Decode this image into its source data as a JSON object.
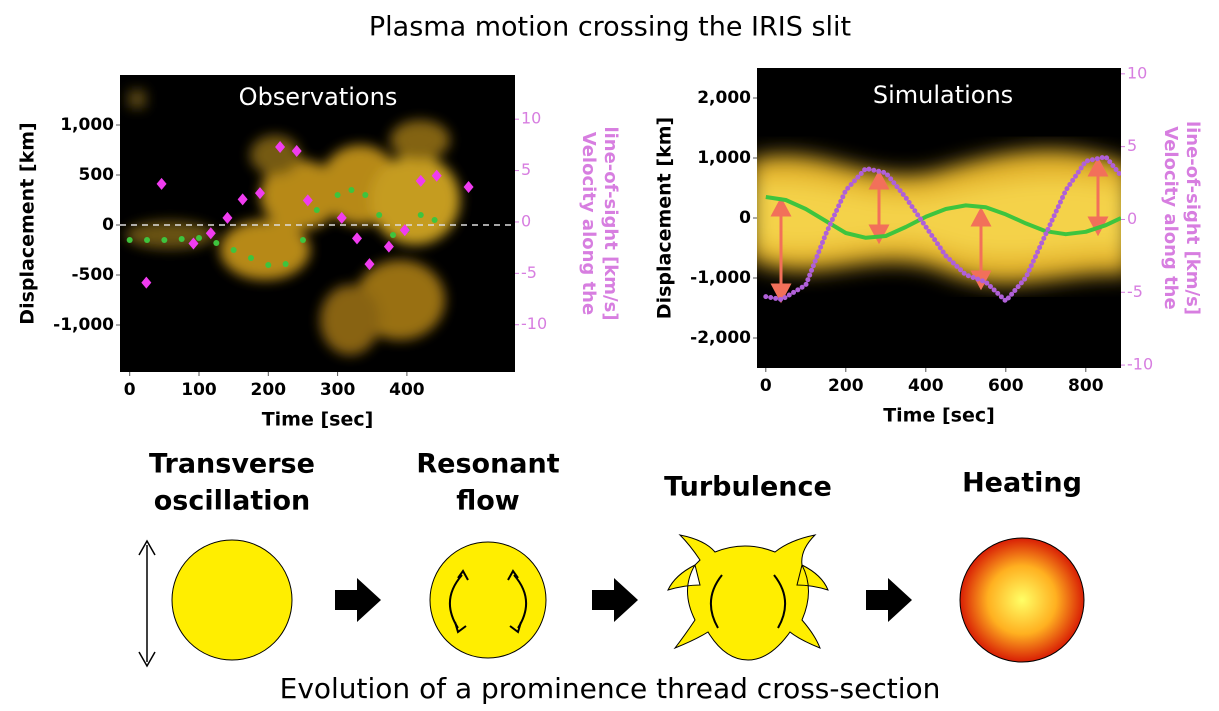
{
  "title": "Plasma motion crossing the IRIS slit",
  "chart_data": [
    {
      "type": "scatter",
      "title": "Observations",
      "xlabel": "Time [sec]",
      "ylabel": "Displacement [km]",
      "y2label": [
        "Velocity along the",
        "line-of-sight [km/s]"
      ],
      "xlim": [
        -14,
        556
      ],
      "xticks": [
        0,
        100,
        200,
        300,
        400
      ],
      "ylim": [
        -1470,
        1500
      ],
      "yticks": [
        {
          "value": 1000,
          "label": "1,000"
        },
        500,
        0,
        -500,
        {
          "value": -1000,
          "label": "-1,000"
        }
      ],
      "y2lim": [
        -14.6,
        14.3
      ],
      "y2ticks": [
        10,
        5,
        0,
        -5,
        -10
      ],
      "series": [
        {
          "style": "dots",
          "color": "#3ec43e",
          "x": [
            0,
            25,
            50,
            75,
            100,
            125,
            150,
            175,
            200,
            225,
            250,
            270,
            300,
            320,
            340,
            360,
            380,
            400,
            420,
            440
          ],
          "values": [
            -150,
            -150,
            -150,
            -140,
            -130,
            -180,
            -250,
            -330,
            -400,
            -390,
            -150,
            150,
            300,
            350,
            300,
            100,
            -100,
            -50,
            100,
            50
          ]
        },
        {
          "style": "diamonds",
          "color": "#f03cf0",
          "axis": "y2",
          "x": [
            24,
            46,
            92,
            117,
            141,
            163,
            188,
            217,
            241,
            257,
            306,
            328,
            346,
            374,
            397,
            420,
            443,
            489
          ],
          "values": [
            -5.9,
            3.7,
            -2.1,
            -1.1,
            0.4,
            2.2,
            2.8,
            7.3,
            6.9,
            2.1,
            0.4,
            -1.6,
            -4.1,
            -2.4,
            -0.8,
            4.0,
            4.5,
            3.4
          ]
        }
      ]
    },
    {
      "type": "line",
      "title": "Simulations",
      "xlabel": "Time [sec]",
      "ylabel": "Displacement [km]",
      "y2label": [
        "Velocity along the",
        "line-of-sight [km/s]"
      ],
      "xlim": [
        -22,
        888
      ],
      "xticks": [
        0,
        200,
        400,
        600,
        800
      ],
      "ylim": [
        -2500,
        2500
      ],
      "yticks": [
        {
          "value": 2000,
          "label": "2,000"
        },
        {
          "value": 1000,
          "label": "1,000"
        },
        0,
        {
          "value": -1000,
          "label": "-1,000"
        },
        {
          "value": -2000,
          "label": "-2,000"
        }
      ],
      "y2lim": [
        -10.2,
        10.4
      ],
      "y2ticks": [
        10,
        5,
        0,
        -5,
        -10
      ],
      "series": [
        {
          "style": "line",
          "color": "#3ec43e",
          "x": [
            0,
            50,
            100,
            150,
            200,
            250,
            300,
            350,
            400,
            450,
            500,
            550,
            600,
            650,
            700,
            750,
            800,
            850,
            888
          ],
          "values": [
            350,
            300,
            150,
            -50,
            -250,
            -330,
            -300,
            -150,
            20,
            150,
            210,
            180,
            60,
            -90,
            -220,
            -270,
            -230,
            -120,
            0
          ]
        },
        {
          "style": "dotted-line",
          "color": "#b060d8",
          "axis": "y2",
          "x": [
            0,
            40,
            100,
            150,
            200,
            250,
            300,
            350,
            400,
            450,
            500,
            550,
            600,
            650,
            700,
            750,
            800,
            850,
            888
          ],
          "values": [
            -5.3,
            -5.5,
            -4.5,
            -1,
            2,
            3.5,
            3.2,
            1.5,
            -0.5,
            -2.5,
            -3.8,
            -4.3,
            -5.6,
            -4,
            -1,
            2,
            4,
            4.3,
            3
          ]
        }
      ]
    }
  ],
  "diagram": {
    "stages": [
      {
        "label": [
          "Transverse",
          "oscillation"
        ]
      },
      {
        "label": [
          "Resonant",
          "flow"
        ]
      },
      {
        "label": [
          "Turbulence"
        ]
      },
      {
        "label": [
          "Heating"
        ]
      }
    ],
    "caption": "Evolution of a prominence thread cross-section"
  }
}
